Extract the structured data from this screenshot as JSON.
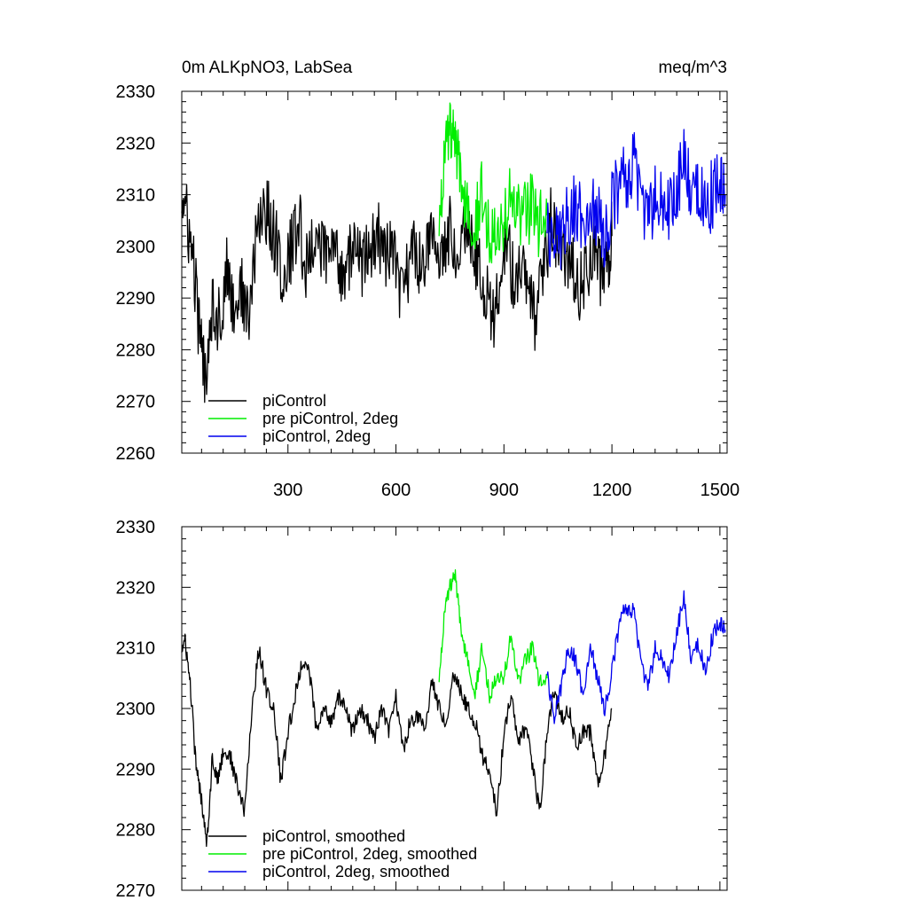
{
  "chart_data": [
    {
      "type": "line",
      "title": "0m ALKpNO3, LabSea",
      "units": "meq/m^3",
      "xlim": [
        5,
        1520
      ],
      "ylim": [
        2260,
        2330
      ],
      "xticks": [
        300,
        600,
        900,
        1200,
        1500
      ],
      "xtick_labels": [
        "300",
        "600",
        "900",
        "1200",
        "1500"
      ],
      "yticks": [
        2260,
        2270,
        2280,
        2290,
        2300,
        2310,
        2320,
        2330
      ],
      "ytick_labels": [
        "2260",
        "2270",
        "2280",
        "2290",
        "2300",
        "2310",
        "2320",
        "2330"
      ],
      "legend": "bottom-left",
      "series": [
        {
          "name": "piControl",
          "color": "#000000",
          "x": [
            5,
            20,
            40,
            55,
            70,
            90,
            110,
            130,
            150,
            170,
            190,
            210,
            230,
            250,
            270,
            290,
            310,
            330,
            350,
            370,
            390,
            410,
            430,
            450,
            470,
            490,
            510,
            530,
            550,
            570,
            590,
            610,
            630,
            650,
            670,
            690,
            710,
            730,
            750,
            770,
            790,
            810,
            830,
            850,
            870,
            890,
            910,
            930,
            950,
            970,
            990,
            1010,
            1030,
            1050,
            1070,
            1090,
            1110,
            1130,
            1150,
            1170,
            1190,
            1200
          ],
          "values": [
            2310,
            2305,
            2295,
            2282,
            2275,
            2290,
            2285,
            2295,
            2288,
            2292,
            2285,
            2300,
            2308,
            2305,
            2300,
            2292,
            2300,
            2305,
            2295,
            2302,
            2300,
            2298,
            2300,
            2295,
            2298,
            2300,
            2296,
            2300,
            2302,
            2298,
            2300,
            2290,
            2295,
            2300,
            2296,
            2302,
            2298,
            2300,
            2303,
            2300,
            2305,
            2302,
            2296,
            2292,
            2285,
            2295,
            2300,
            2292,
            2296,
            2290,
            2285,
            2295,
            2305,
            2300,
            2298,
            2295,
            2292,
            2296,
            2300,
            2294,
            2298,
            2302
          ]
        },
        {
          "name": "pre piControl, 2deg",
          "color": "#00ee00",
          "x": [
            720,
            735,
            750,
            765,
            780,
            800,
            820,
            840,
            860,
            880,
            900,
            920,
            940,
            960,
            980,
            1000,
            1020
          ],
          "values": [
            2305,
            2318,
            2322,
            2320,
            2312,
            2308,
            2306,
            2310,
            2302,
            2306,
            2304,
            2310,
            2305,
            2306,
            2308,
            2304,
            2306
          ]
        },
        {
          "name": "piControl, 2deg",
          "color": "#0000ee",
          "x": [
            1020,
            1040,
            1060,
            1080,
            1100,
            1120,
            1140,
            1160,
            1180,
            1200,
            1220,
            1240,
            1260,
            1280,
            1300,
            1320,
            1340,
            1360,
            1380,
            1400,
            1420,
            1440,
            1460,
            1480,
            1500,
            1515
          ],
          "values": [
            2305,
            2300,
            2302,
            2306,
            2308,
            2304,
            2310,
            2306,
            2302,
            2308,
            2312,
            2314,
            2316,
            2310,
            2304,
            2310,
            2308,
            2306,
            2312,
            2316,
            2310,
            2312,
            2308,
            2310,
            2312,
            2310
          ]
        }
      ]
    },
    {
      "type": "line",
      "title": "",
      "xlim": [
        5,
        1520
      ],
      "ylim": [
        2270,
        2330
      ],
      "xticks": [
        300,
        600,
        900,
        1200,
        1500
      ],
      "yticks": [
        2270,
        2280,
        2290,
        2300,
        2310,
        2320,
        2330
      ],
      "ytick_labels": [
        "2270",
        "2280",
        "2290",
        "2300",
        "2310",
        "2320",
        "2330"
      ],
      "legend": "bottom-left",
      "series": [
        {
          "name": "piControl, smoothed",
          "color": "#000000",
          "x": [
            5,
            15,
            30,
            45,
            60,
            75,
            90,
            105,
            120,
            140,
            160,
            180,
            200,
            220,
            240,
            260,
            280,
            300,
            320,
            340,
            360,
            380,
            400,
            420,
            440,
            460,
            480,
            500,
            520,
            540,
            560,
            580,
            600,
            620,
            640,
            660,
            680,
            700,
            720,
            740,
            760,
            780,
            800,
            820,
            840,
            860,
            880,
            900,
            920,
            940,
            960,
            980,
            1000,
            1020,
            1040,
            1060,
            1080,
            1100,
            1120,
            1140,
            1160,
            1180,
            1200
          ],
          "values": [
            2310,
            2311,
            2303,
            2290,
            2285,
            2278,
            2292,
            2288,
            2293,
            2292,
            2287,
            2283,
            2300,
            2310,
            2303,
            2300,
            2288,
            2296,
            2302,
            2308,
            2306,
            2296,
            2300,
            2298,
            2302,
            2300,
            2296,
            2300,
            2298,
            2295,
            2300,
            2296,
            2302,
            2293,
            2298,
            2299,
            2296,
            2305,
            2300,
            2298,
            2306,
            2303,
            2300,
            2298,
            2292,
            2290,
            2282,
            2296,
            2302,
            2294,
            2297,
            2290,
            2283,
            2296,
            2303,
            2298,
            2300,
            2294,
            2296,
            2296,
            2288,
            2292,
            2300
          ]
        },
        {
          "name": "pre piControl, 2deg, smoothed",
          "color": "#00ee00",
          "x": [
            720,
            735,
            750,
            765,
            780,
            800,
            820,
            840,
            860,
            880,
            900,
            920,
            940,
            960,
            980,
            1000,
            1020
          ],
          "values": [
            2305,
            2316,
            2320,
            2322,
            2313,
            2308,
            2303,
            2310,
            2302,
            2306,
            2305,
            2312,
            2304,
            2308,
            2310,
            2304,
            2305
          ]
        },
        {
          "name": "piControl, 2deg, smoothed",
          "color": "#0000ee",
          "x": [
            1020,
            1040,
            1060,
            1080,
            1100,
            1120,
            1140,
            1160,
            1180,
            1200,
            1220,
            1240,
            1260,
            1280,
            1300,
            1320,
            1340,
            1360,
            1380,
            1400,
            1420,
            1440,
            1460,
            1480,
            1500,
            1515
          ],
          "values": [
            2306,
            2298,
            2304,
            2310,
            2308,
            2302,
            2311,
            2305,
            2300,
            2306,
            2314,
            2317,
            2316,
            2308,
            2303,
            2310,
            2308,
            2305,
            2313,
            2318,
            2308,
            2311,
            2306,
            2312,
            2314,
            2313
          ]
        }
      ]
    }
  ]
}
